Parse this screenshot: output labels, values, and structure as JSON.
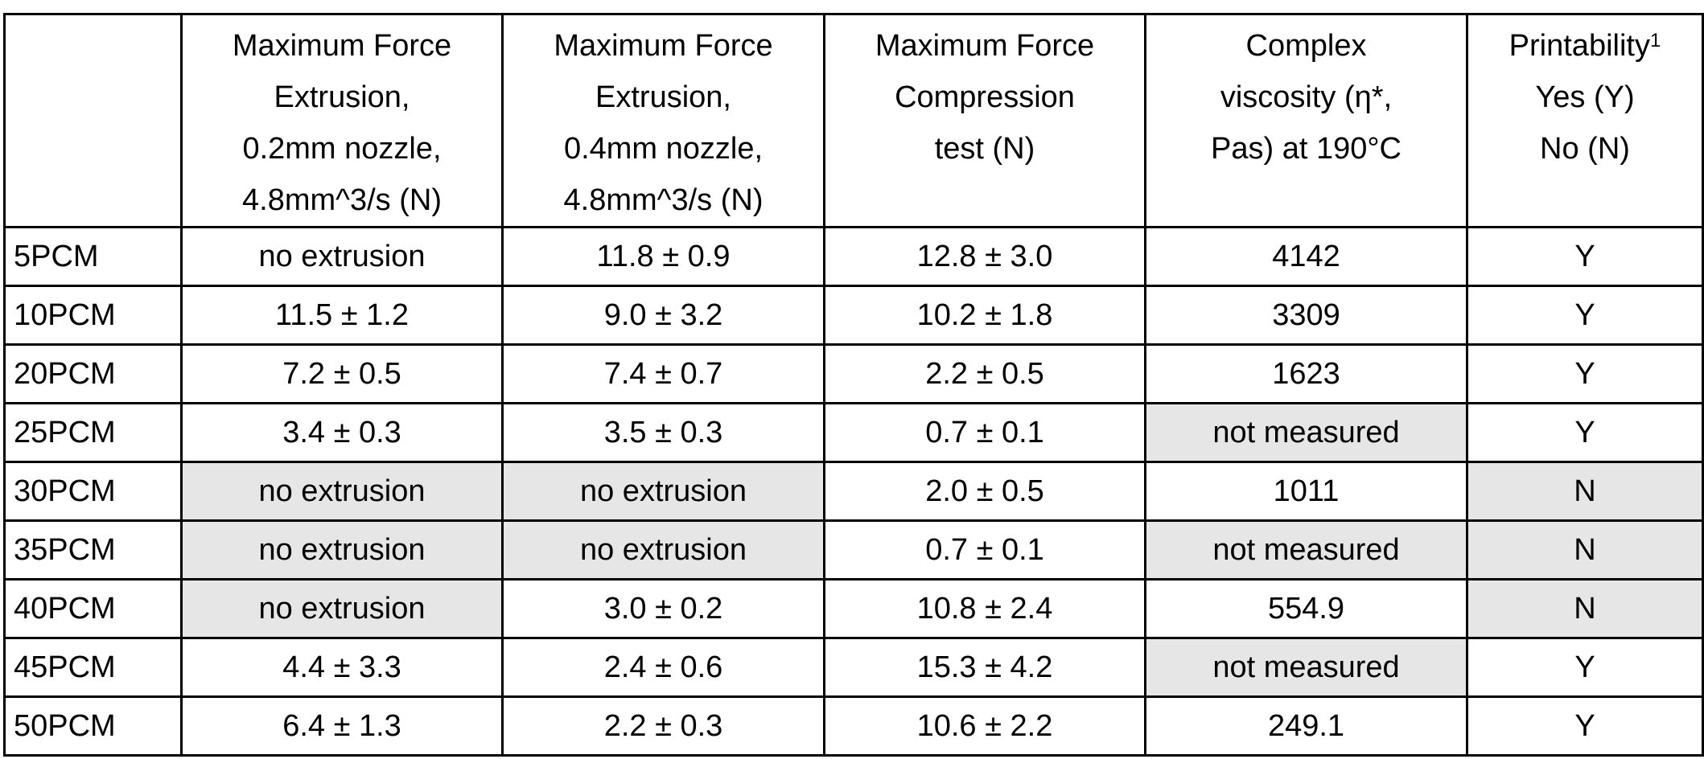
{
  "table": {
    "header": [
      {
        "lines": [
          "Maximum Force",
          "Extrusion,",
          "0.2mm nozzle,",
          "4.8mm^3/s (N)"
        ]
      },
      {
        "lines": [
          "Maximum Force",
          "Extrusion,",
          "0.4mm nozzle,",
          "4.8mm^3/s (N)"
        ]
      },
      {
        "lines": [
          "Maximum Force",
          "Compression",
          "test (N)"
        ]
      },
      {
        "lines": [
          "Complex",
          "viscosity (η*,",
          "Pas) at 190°C"
        ]
      },
      {
        "lines": [
          "Printability",
          "Yes (Y)",
          "No (N)"
        ],
        "note": "1"
      }
    ],
    "rows": [
      [
        "5PCM",
        "no extrusion",
        "11.8 ± 0.9",
        "12.8 ± 3.0",
        "4142",
        "Y"
      ],
      [
        "10PCM",
        "11.5 ± 1.2",
        "9.0 ± 3.2",
        "10.2 ± 1.8",
        "3309",
        "Y"
      ],
      [
        "20PCM",
        "7.2 ± 0.5",
        "7.4 ± 0.7",
        "2.2 ± 0.5",
        "1623",
        "Y"
      ],
      [
        "25PCM",
        "3.4 ± 0.3",
        "3.5 ± 0.3",
        "0.7 ± 0.1",
        "not measured",
        "Y"
      ],
      [
        "30PCM",
        "no extrusion",
        "no extrusion",
        "2.0 ± 0.5",
        "1011",
        "N"
      ],
      [
        "35PCM",
        "no extrusion",
        "no extrusion",
        "0.7 ± 0.1",
        "not measured",
        "N"
      ],
      [
        "40PCM",
        "no extrusion",
        "3.0 ± 0.2",
        "10.8 ± 2.4",
        "554.9",
        "N"
      ],
      [
        "45PCM",
        "4.4 ± 3.3",
        "2.4 ± 0.6",
        "15.3 ± 4.2",
        "not measured",
        "Y"
      ],
      [
        "50PCM",
        "6.4 ± 1.3",
        "2.2 ± 0.3",
        "10.6 ± 2.2",
        "249.1",
        "Y"
      ]
    ]
  }
}
